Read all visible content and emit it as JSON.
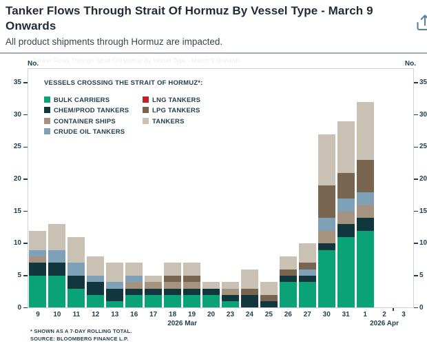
{
  "header": {
    "title": "Tanker Flows Through Strait Of Hormuz By Vessel Type - March 9 Onwards",
    "subtitle": "All product shipments through Hormuz are impacted."
  },
  "watermark_text": "Tanker Flows Through Strait Of Hormuz By Vessel Type - March 9 Onwards",
  "axes": {
    "left_unit": "No.",
    "right_unit": "No."
  },
  "legend": {
    "title": "VESSELS CROSSING THE STRAIT OF HORMUZ*:"
  },
  "chart_data": {
    "type": "bar",
    "stacked": true,
    "title": "Tanker Flows Through Strait Of Hormuz By Vessel Type - March 9 Onwards",
    "ylabel": "No.",
    "ylim": [
      0,
      35
    ],
    "ytick_step": 5,
    "grid": false,
    "legend_position": "inside-top-left",
    "categories": [
      "9",
      "10",
      "11",
      "12",
      "13",
      "16",
      "17",
      "18",
      "19",
      "20",
      "23",
      "24",
      "25",
      "26",
      "27",
      "30",
      "31",
      "1",
      "2",
      "3"
    ],
    "month_labels": [
      {
        "label": "2026 Mar",
        "slot_center": 8.0
      },
      {
        "label": "2026 Apr",
        "slot_center": 18.5
      }
    ],
    "series": [
      {
        "name": "BULK CARRIERS",
        "color": "#0aa377",
        "values": [
          5,
          5,
          3,
          2,
          1,
          2,
          2,
          2,
          2,
          2,
          1,
          0,
          0,
          4,
          4,
          9,
          11,
          12,
          0,
          0
        ]
      },
      {
        "name": "CHEM/PROD TANKERS",
        "color": "#11363d",
        "values": [
          2,
          2,
          2,
          2,
          2,
          1,
          1,
          1,
          1,
          1,
          1,
          2,
          1,
          1,
          1,
          1,
          2,
          2,
          0,
          0
        ]
      },
      {
        "name": "CONTAINER SHIPS",
        "color": "#a6937f",
        "values": [
          1,
          0,
          0,
          0,
          0,
          1,
          1,
          1,
          1,
          0,
          1,
          0,
          0,
          0,
          0,
          2,
          2,
          2,
          0,
          0
        ]
      },
      {
        "name": "CRUDE OIL TANKERS",
        "color": "#7ea1b7",
        "values": [
          1,
          2,
          2,
          1,
          1,
          1,
          0,
          0,
          0,
          0,
          0,
          0,
          0,
          0,
          1,
          2,
          2,
          2,
          0,
          0
        ]
      },
      {
        "name": "LNG TANKERS",
        "color": "#bf2127",
        "values": [
          0,
          0,
          0,
          0,
          0,
          0,
          0,
          0,
          0,
          0,
          0,
          0,
          0,
          0,
          0,
          0,
          0,
          0,
          0,
          0
        ]
      },
      {
        "name": "LPG TANKERS",
        "color": "#786550",
        "values": [
          0,
          0,
          0,
          0,
          0,
          0,
          0,
          1,
          1,
          0,
          0,
          1,
          1,
          1,
          1,
          5,
          4,
          5,
          0,
          0
        ]
      },
      {
        "name": "TANKERS",
        "color": "#c9c1b4",
        "values": [
          3,
          4,
          4,
          3,
          3,
          2,
          1,
          2,
          2,
          1,
          1,
          3,
          2,
          2,
          3,
          8,
          8,
          9,
          0,
          0
        ]
      }
    ],
    "totals": [
      12,
      13,
      11,
      8,
      7,
      7,
      5,
      7,
      7,
      4,
      4,
      6,
      4,
      8,
      10,
      27,
      29,
      32,
      0,
      0
    ]
  },
  "footnotes": {
    "line1": "* SHOWN AS A 7-DAY ROLLING TOTAL.",
    "line2": "SOURCE: BLOOMBERG FINANCE L.P."
  }
}
